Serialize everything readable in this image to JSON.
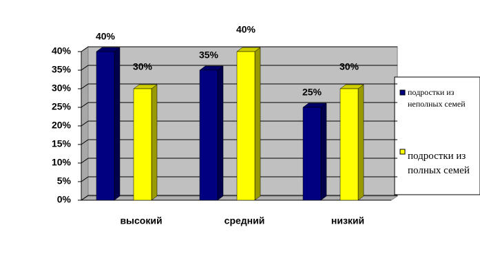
{
  "chart_data": {
    "type": "bar",
    "categories": [
      "высокий",
      "средний",
      "низкий"
    ],
    "series": [
      {
        "name": "подростки из неполных семей",
        "color": "#000080",
        "values": [
          40,
          35,
          25
        ],
        "value_labels": [
          "40%",
          "35%",
          "25%"
        ]
      },
      {
        "name": "подростки из полных семей",
        "color": "#ffff00",
        "values": [
          30,
          40,
          30
        ],
        "value_labels": [
          "30%",
          "40%",
          "30%"
        ]
      }
    ],
    "ylim": [
      0,
      40
    ],
    "yticks": [
      {
        "value": 0,
        "label": "0%"
      },
      {
        "value": 5,
        "label": "5%"
      },
      {
        "value": 10,
        "label": "10%"
      },
      {
        "value": 15,
        "label": "15%"
      },
      {
        "value": 20,
        "label": "20%"
      },
      {
        "value": 25,
        "label": "25%"
      },
      {
        "value": 30,
        "label": "30%"
      },
      {
        "value": 35,
        "label": "35%"
      },
      {
        "value": 40,
        "label": "40%"
      }
    ],
    "grid": true,
    "legend": "right"
  }
}
